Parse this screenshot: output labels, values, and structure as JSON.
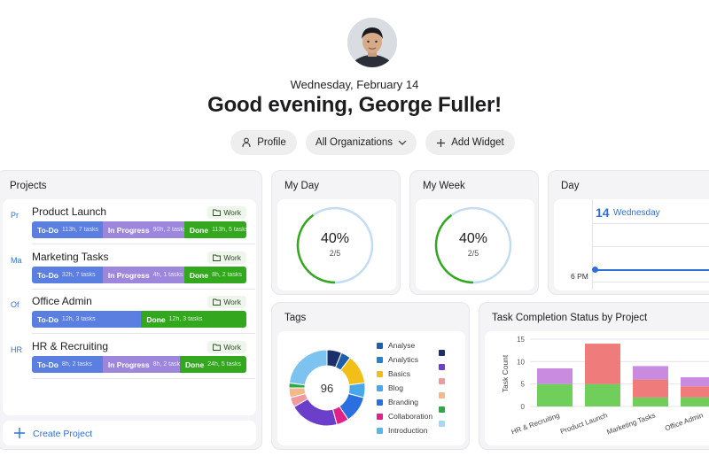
{
  "header": {
    "date": "Wednesday, February 14",
    "greeting": "Good evening, George Fuller!"
  },
  "toolbar": {
    "profile_label": "Profile",
    "org_label": "All Organizations",
    "add_widget_label": "Add Widget"
  },
  "projects": {
    "title": "Projects",
    "items": [
      {
        "badge": "Pr",
        "name": "Product Launch",
        "tag": "Work",
        "segments": [
          {
            "label": "To-Do",
            "meta": "113h, 7 tasks",
            "share": 0.33
          },
          {
            "label": "In Progress",
            "meta": "90h, 2 tasks",
            "share": 0.38
          },
          {
            "label": "Done",
            "meta": "113h, 5 tasks",
            "share": 0.29
          }
        ]
      },
      {
        "badge": "Ma",
        "name": "Marketing Tasks",
        "tag": "Work",
        "segments": [
          {
            "label": "To-Do",
            "meta": "32h, 7 tasks",
            "share": 0.33
          },
          {
            "label": "In Progress",
            "meta": "4h, 1 tasks",
            "share": 0.38
          },
          {
            "label": "Done",
            "meta": "8h, 2 tasks",
            "share": 0.29
          }
        ]
      },
      {
        "badge": "Of",
        "name": "Office Admin",
        "tag": "Work",
        "segments": [
          {
            "label": "To-Do",
            "meta": "12h, 3 tasks",
            "share": 0.51
          },
          {
            "label": "Done",
            "meta": "12h, 3 tasks",
            "share": 0.49
          }
        ]
      },
      {
        "badge": "HR",
        "name": "HR & Recruiting",
        "tag": "Work",
        "segments": [
          {
            "label": "To-Do",
            "meta": "8h, 2 tasks",
            "share": 0.33
          },
          {
            "label": "In Progress",
            "meta": "8h, 2 tasks",
            "share": 0.36
          },
          {
            "label": "Done",
            "meta": "24h, 5 tasks",
            "share": 0.31
          }
        ]
      }
    ],
    "create_label": "Create Project"
  },
  "my_day": {
    "title": "My Day",
    "percent": "40%",
    "ratio": "2/5",
    "progress": 0.4
  },
  "my_week": {
    "title": "My Week",
    "percent": "40%",
    "ratio": "2/5",
    "progress": 0.4
  },
  "day": {
    "title": "Day",
    "day_number": "14",
    "day_name": "Wednesday",
    "hour": "6 PM"
  },
  "tags": {
    "title": "Tags",
    "total": "96",
    "legend": [
      {
        "name": "Analyse",
        "color": "#1f5fa8"
      },
      {
        "name": "Analytics",
        "color": "#2d7fc9"
      },
      {
        "name": "Basics",
        "color": "#f2bf18"
      },
      {
        "name": "Blog",
        "color": "#4aa8e8"
      },
      {
        "name": "Branding",
        "color": "#2a6fe0"
      },
      {
        "name": "Collaboration",
        "color": "#e0218a"
      },
      {
        "name": "Introduction",
        "color": "#5cb6ee"
      }
    ],
    "legend_extra_colors": [
      "#1a2f6b",
      "#6b3fc9",
      "#f09aa0",
      "#f3b98a",
      "#2fa84a",
      "#a8d6f5"
    ],
    "slices": [
      {
        "value": 6,
        "color": "#1a2f6b"
      },
      {
        "value": 4,
        "color": "#1f5fa8"
      },
      {
        "value": 12,
        "color": "#f2bf18"
      },
      {
        "value": 6,
        "color": "#4aa8e8"
      },
      {
        "value": 11,
        "color": "#2a6fe0"
      },
      {
        "value": 5,
        "color": "#e0218a"
      },
      {
        "value": 20,
        "color": "#6b3fc9"
      },
      {
        "value": 4,
        "color": "#f09aa0"
      },
      {
        "value": 4,
        "color": "#f3b98a"
      },
      {
        "value": 2,
        "color": "#2fa84a"
      },
      {
        "value": 22,
        "color": "#7cc3f0"
      }
    ]
  },
  "completion": {
    "title": "Task Completion Status by Project",
    "chart_data": {
      "type": "bar",
      "stacked": true,
      "title": "Task Completion Status by Project",
      "ylabel": "Task Count",
      "ylim": [
        0,
        15
      ],
      "yticks": [
        "0",
        "5",
        "10",
        "15"
      ],
      "categories": [
        "HR & Recruiting",
        "Product Launch",
        "Marketing Tasks",
        "Office Admin"
      ],
      "series": [
        {
          "values": [
            5,
            5,
            2,
            2
          ],
          "color": "#6fcf5a"
        },
        {
          "values": [
            0,
            9,
            4,
            2.5
          ],
          "color": "#ef7b7b"
        },
        {
          "values": [
            3.5,
            0,
            3,
            2
          ],
          "color": "#c98be0"
        }
      ]
    }
  }
}
